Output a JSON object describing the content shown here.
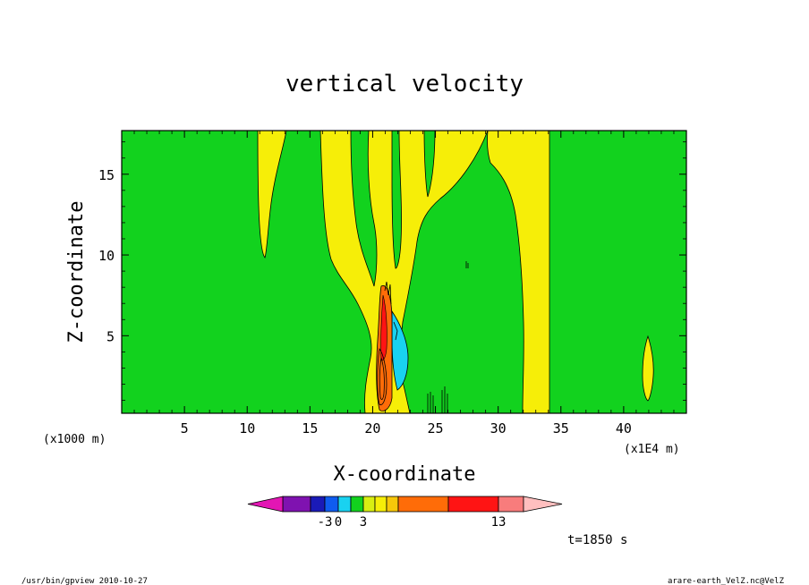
{
  "chart_data": {
    "type": "heatmap",
    "title": "vertical velocity",
    "xlabel": "X-coordinate",
    "ylabel": "Z-coordinate",
    "x_unit_label": "(x1E4 m)",
    "y_unit_label": "(x1000 m)",
    "x_ticks": [
      5,
      10,
      15,
      20,
      25,
      30,
      35,
      40
    ],
    "y_ticks": [
      5,
      10,
      15
    ],
    "xlim": [
      0,
      45
    ],
    "ylim": [
      0.2,
      17.7
    ],
    "time_label": "t=1850 s",
    "colorbar": {
      "colors": [
        "#e316b4",
        "#7f12b0",
        "#1a1ab8",
        "#0f5cf0",
        "#19d2f0",
        "#12d21e",
        "#d8ee12",
        "#f6ee08",
        "#f7c70a",
        "#ff6c08",
        "#ff1414",
        "#f87c7c",
        "#ffbfbf"
      ],
      "tick_labels": [
        "-3",
        "0",
        "3",
        "13"
      ],
      "tick_box_index": [
        3,
        4,
        6,
        11
      ]
    },
    "features": [
      {
        "kind": "updraft-band",
        "level": "yellow",
        "x": [
          32.1,
          34.2
        ],
        "z": [
          0.2,
          17.7
        ]
      },
      {
        "kind": "updraft-core",
        "level": "orange-red",
        "x": [
          20.5,
          21.7
        ],
        "z": [
          0.8,
          8.0
        ]
      },
      {
        "kind": "downdraft",
        "level": "cyan",
        "x": [
          21.8,
          22.8
        ],
        "z": [
          2.4,
          5.8
        ]
      },
      {
        "kind": "updraft-isolated",
        "level": "yellow",
        "x": [
          41.3,
          42.3
        ],
        "z": [
          0.8,
          4.7
        ]
      }
    ]
  },
  "footer": {
    "left": "/usr/bin/gpview  2010-10-27",
    "right": "arare-earth_VelZ.nc@VelZ"
  }
}
